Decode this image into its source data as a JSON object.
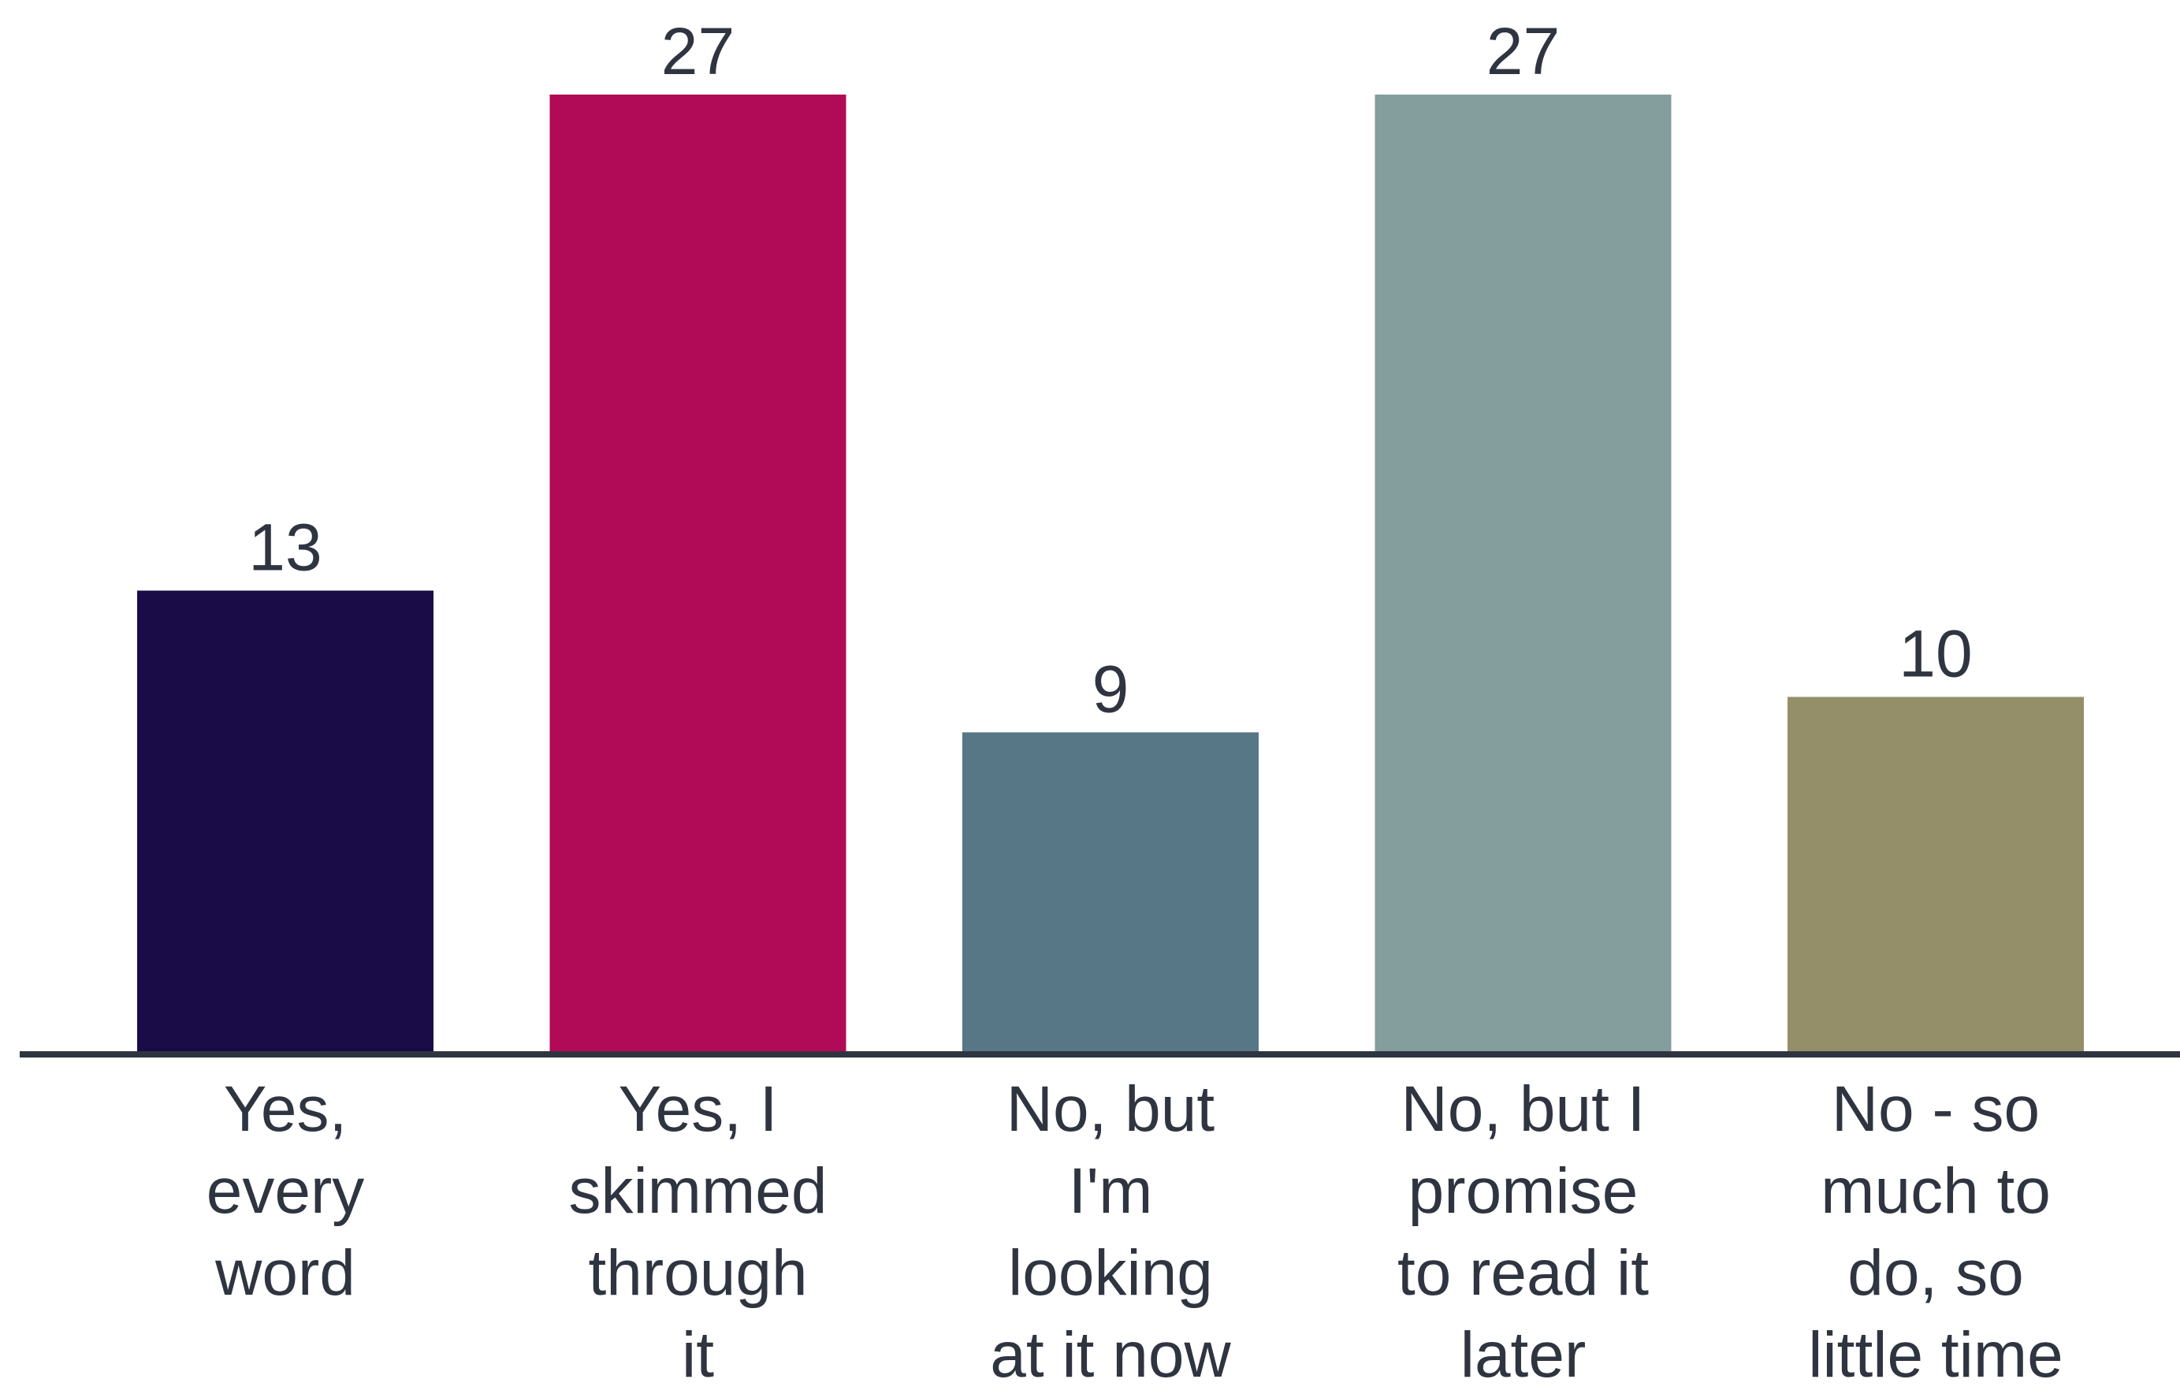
{
  "chart_data": {
    "type": "bar",
    "title": "",
    "xlabel": "",
    "ylabel": "",
    "ylim": [
      0,
      27
    ],
    "grid": false,
    "legend": "none",
    "categories": [
      "Yes, every word",
      "Yes, I skimmed through it",
      "No, but I'm looking at it now",
      "No, but I promise to read it later",
      "No - so much to do, so little time"
    ],
    "category_lines": [
      [
        "Yes,",
        "every",
        "word"
      ],
      [
        "Yes, I",
        "skimmed",
        "through",
        "it"
      ],
      [
        "No, but",
        "I'm",
        "looking",
        "at it now"
      ],
      [
        "No, but I",
        "promise",
        "to read it",
        "later"
      ],
      [
        "No - so",
        "much to",
        "do, so",
        "little time"
      ]
    ],
    "values": [
      13,
      27,
      9,
      27,
      10
    ],
    "value_labels": [
      "13",
      "27",
      "9",
      "27",
      "10"
    ],
    "colors": [
      "#1a0c47",
      "#b10a56",
      "#577787",
      "#849e9d",
      "#958f69"
    ],
    "axis_color": "#2f3540",
    "text_color": "#2f3540"
  }
}
